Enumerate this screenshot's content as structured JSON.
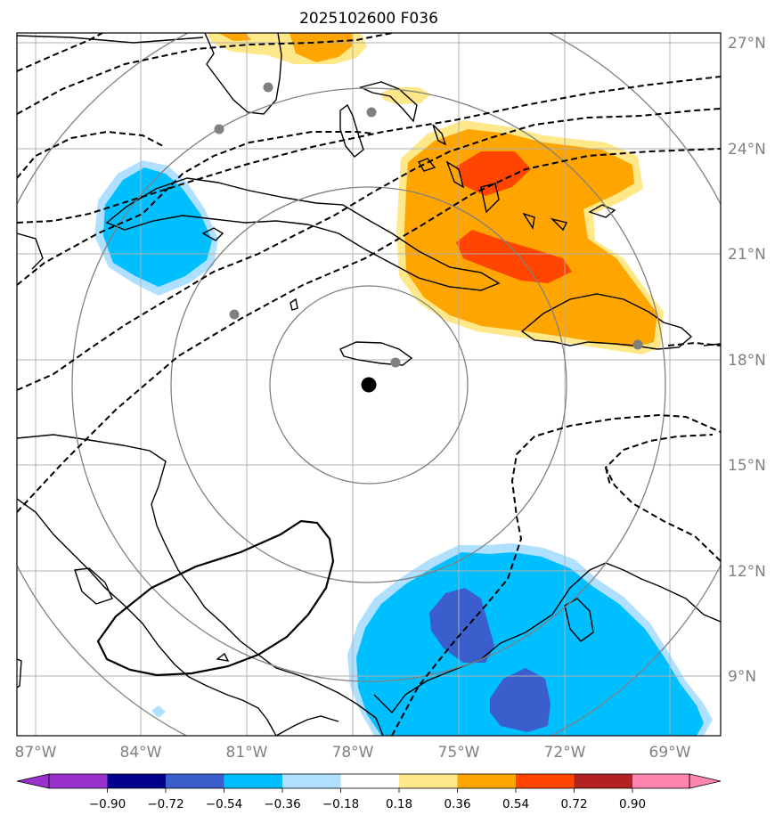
{
  "title": "2025102600 F036",
  "lon_labels": [
    "87°W",
    "84°W",
    "81°W",
    "78°W",
    "75°W",
    "72°W",
    "69°W"
  ],
  "lat_labels": [
    "27°N",
    "24°N",
    "21°N",
    "18°N",
    "15°N",
    "12°N",
    "9°N"
  ],
  "colorbar": {
    "ticks": [
      "−0.90",
      "−0.72",
      "−0.54",
      "−0.36",
      "−0.18",
      "0.18",
      "0.36",
      "0.54",
      "0.72",
      "0.90"
    ],
    "colors": [
      "#9932cc",
      "#00008b",
      "#3a5fcd",
      "#00bfff",
      "#b0e0ff",
      "#ffffff",
      "#ffe88a",
      "#ffa500",
      "#ff4500",
      "#b22222",
      "#ff85b0"
    ]
  },
  "center_marker": {
    "lon": -77.8,
    "lat": 17.3
  },
  "range_rings": 4,
  "stations": [
    {
      "lon": -80.4,
      "lat": 25.7
    },
    {
      "lon": -81.8,
      "lat": 24.5
    },
    {
      "lon": -77.5,
      "lat": 25.0
    },
    {
      "lon": -80.8,
      "lat": 19.3
    },
    {
      "lon": -76.8,
      "lat": 17.9
    },
    {
      "lon": -70.0,
      "lat": 18.4
    }
  ]
}
